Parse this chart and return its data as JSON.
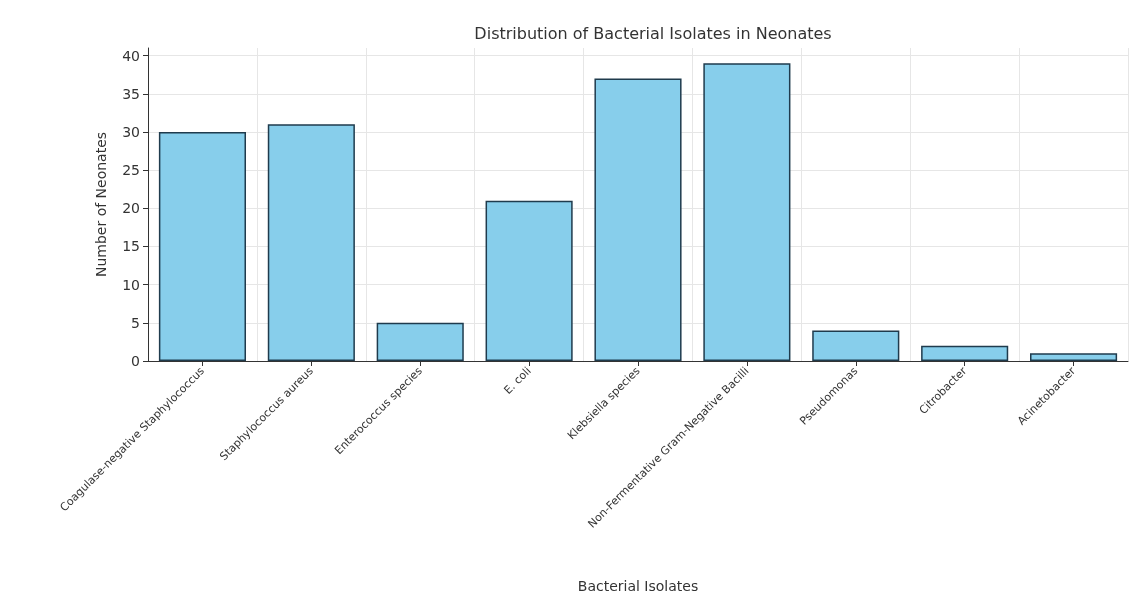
{
  "chart_data": {
    "type": "bar",
    "title": "Distribution of Bacterial Isolates in Neonates",
    "xlabel": "Bacterial Isolates",
    "ylabel": "Number of Neonates",
    "categories": [
      "Coagulase-negative Staphylococcus",
      "Staphylococcus aureus",
      "Enterococcus species",
      "E. coli",
      "Klebsiella species",
      "Non-Fermentative Gram-Negative Bacilli",
      "Pseudomonas",
      "Citrobacter",
      "Acinetobacter"
    ],
    "values": [
      30,
      31,
      5,
      21,
      37,
      39,
      4,
      2,
      1
    ],
    "color": "#87ceeb",
    "ylim": [
      0,
      41
    ],
    "yticks": [
      0,
      5,
      10,
      15,
      20,
      25,
      30,
      35,
      40
    ],
    "grid": true
  }
}
